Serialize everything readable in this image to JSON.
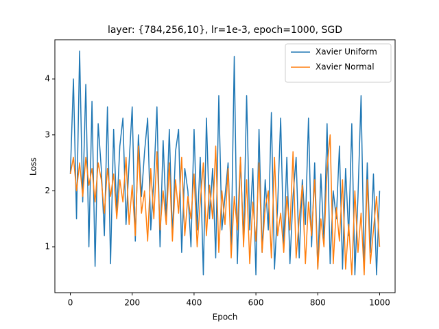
{
  "chart_data": {
    "type": "line",
    "title": "layer: {784,256,10}, lr=1e-3, epoch=1000, SGD",
    "x_label": "Epoch",
    "y_label": "Loss",
    "x": [
      0,
      10,
      20,
      30,
      40,
      50,
      60,
      70,
      80,
      90,
      100,
      110,
      120,
      130,
      140,
      150,
      160,
      170,
      180,
      190,
      200,
      210,
      220,
      230,
      240,
      250,
      260,
      270,
      280,
      290,
      300,
      310,
      320,
      330,
      340,
      350,
      360,
      370,
      380,
      390,
      400,
      410,
      420,
      430,
      440,
      450,
      460,
      470,
      480,
      490,
      500,
      510,
      520,
      530,
      540,
      550,
      560,
      570,
      580,
      590,
      600,
      610,
      620,
      630,
      640,
      650,
      660,
      670,
      680,
      690,
      700,
      710,
      720,
      730,
      740,
      750,
      760,
      770,
      780,
      790,
      800,
      810,
      820,
      830,
      840,
      850,
      860,
      870,
      880,
      890,
      900,
      910,
      920,
      930,
      940,
      950,
      960,
      970,
      980,
      990,
      1000
    ],
    "series": [
      {
        "name": "Xavier Uniform",
        "color": "#1f77b4",
        "values": [
          2.3,
          4.0,
          1.5,
          4.5,
          1.8,
          3.9,
          1.0,
          3.6,
          0.65,
          3.2,
          2.4,
          1.2,
          3.5,
          0.7,
          3.1,
          1.6,
          2.8,
          3.3,
          1.4,
          2.5,
          3.5,
          1.1,
          3.0,
          1.9,
          2.7,
          3.3,
          1.3,
          2.2,
          3.5,
          1.0,
          2.9,
          1.5,
          3.1,
          1.2,
          2.7,
          3.1,
          0.9,
          2.4,
          2.0,
          1.0,
          3.1,
          1.3,
          2.6,
          0.5,
          3.3,
          1.5,
          2.4,
          0.8,
          3.7,
          1.3,
          1.9,
          2.5,
          0.9,
          4.4,
          0.7,
          2.6,
          1.1,
          3.7,
          1.3,
          2.4,
          0.5,
          3.1,
          0.9,
          2.2,
          1.3,
          3.4,
          0.6,
          1.7,
          3.3,
          1.0,
          2.6,
          0.7,
          1.9,
          2.6,
          0.8,
          2.2,
          1.4,
          3.3,
          1.0,
          2.5,
          0.6,
          2.3,
          1.1,
          3.2,
          0.7,
          2.0,
          1.5,
          2.8,
          0.6,
          2.4,
          1.2,
          3.2,
          0.5,
          1.9,
          3.7,
          0.6,
          2.5,
          0.9,
          2.3,
          0.5,
          2.0
        ]
      },
      {
        "name": "Xavier Normal",
        "color": "#ff7f0e",
        "values": [
          2.3,
          2.6,
          2.0,
          2.5,
          1.9,
          2.6,
          2.1,
          2.4,
          1.8,
          2.5,
          2.2,
          1.6,
          2.4,
          1.9,
          2.3,
          1.5,
          2.2,
          1.8,
          2.6,
          1.4,
          2.1,
          1.2,
          2.8,
          1.6,
          2.0,
          1.1,
          2.4,
          1.5,
          2.7,
          1.3,
          2.0,
          1.4,
          2.5,
          1.1,
          2.2,
          1.6,
          2.6,
          1.2,
          1.9,
          1.5,
          2.3,
          1.0,
          1.8,
          2.5,
          1.2,
          2.1,
          1.5,
          2.8,
          0.9,
          2.0,
          1.4,
          2.4,
          0.8,
          1.9,
          1.3,
          2.6,
          1.0,
          2.2,
          0.7,
          1.8,
          1.1,
          2.5,
          0.9,
          1.7,
          2.0,
          0.8,
          2.6,
          1.2,
          1.6,
          0.9,
          1.9,
          1.3,
          2.7,
          0.8,
          1.5,
          2.1,
          0.7,
          1.8,
          1.2,
          2.2,
          0.6,
          1.5,
          1.0,
          2.4,
          3.0,
          0.7,
          1.7,
          1.1,
          2.2,
          0.6,
          1.4,
          0.5,
          2.0,
          0.9,
          1.6,
          0.5,
          2.2,
          0.7,
          1.3,
          1.9,
          1.0
        ]
      }
    ],
    "xlim": [
      -50,
      1050
    ],
    "ylim": [
      0.18,
      4.7
    ],
    "xticks": [
      0,
      200,
      400,
      600,
      800,
      1000
    ],
    "yticks": [
      1,
      2,
      3,
      4
    ],
    "grid": false,
    "legend": "upper right"
  }
}
